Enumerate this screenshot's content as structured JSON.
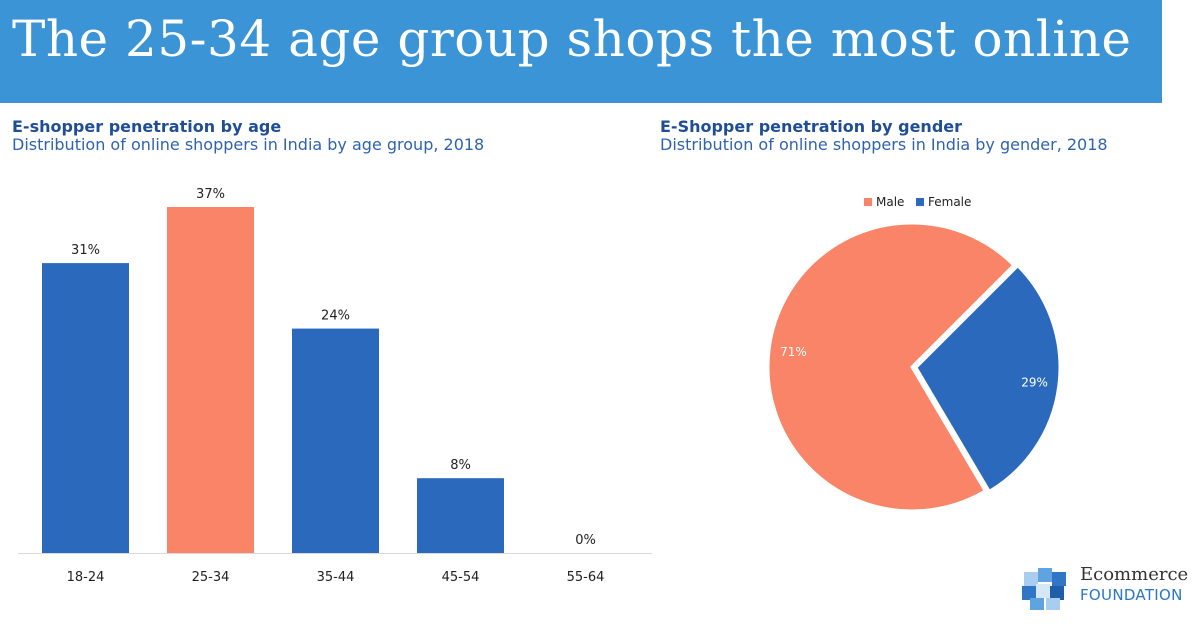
{
  "header": {
    "title": "The 25-34 age group shops the most online"
  },
  "bar_chart": {
    "title": "E-shopper penetration by age",
    "subtitle": "Distribution of online shoppers in India by age group, 2018"
  },
  "pie_chart": {
    "title": "E-Shopper penetration by gender",
    "subtitle": "Distribution of online shoppers in India by gender, 2018"
  },
  "logo": {
    "line1": "Ecommerce",
    "line2": "FOUNDATION"
  },
  "colors": {
    "banner": "#3a94d6",
    "blue": "#2b69bd",
    "orange": "#f98468"
  },
  "chart_data": [
    {
      "type": "bar",
      "title": "E-shopper penetration by age",
      "subtitle": "Distribution of online shoppers in India by age group, 2018",
      "categories": [
        "18-24",
        "25-34",
        "35-44",
        "45-54",
        "55-64"
      ],
      "values": [
        31,
        37,
        24,
        8,
        0
      ],
      "labels": [
        "31%",
        "37%",
        "24%",
        "8%",
        "0%"
      ],
      "highlight_index": 1,
      "ylim": [
        0,
        40
      ],
      "grid": false,
      "xlabel": "",
      "ylabel": ""
    },
    {
      "type": "pie",
      "title": "E-Shopper penetration by gender",
      "subtitle": "Distribution of online shoppers in India by gender, 2018",
      "categories": [
        "Male",
        "Female"
      ],
      "values": [
        71,
        29
      ],
      "labels": [
        "71%",
        "29%"
      ],
      "legend": "top-center"
    }
  ]
}
